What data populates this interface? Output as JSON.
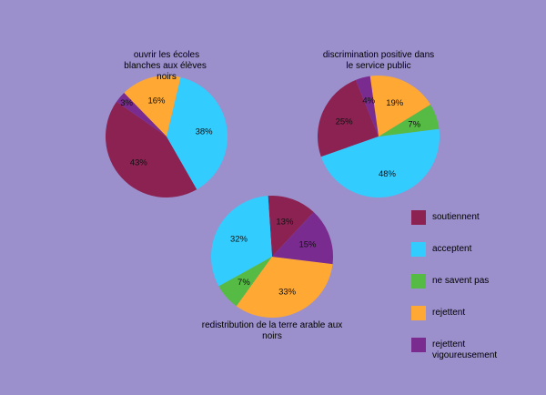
{
  "legend": {
    "entries": [
      {
        "label": "soutiennent",
        "color": "#8b2252"
      },
      {
        "label": "acceptent",
        "color": "#33ccff"
      },
      {
        "label": "ne savent pas",
        "color": "#55bb44"
      },
      {
        "label": "rejettent",
        "color": "#ffa833"
      },
      {
        "label": "rejettent vigoureusement",
        "color": "#7a2b8f"
      }
    ]
  },
  "chart_data": [
    {
      "type": "pie",
      "title": "ouvrir les écoles blanches aux élèves  noirs",
      "categories": [
        "soutiennent",
        "acceptent",
        "ne savent pas",
        "rejettent",
        "rejettent vigoureusement"
      ],
      "values": [
        43,
        38,
        0,
        16,
        3
      ],
      "labels": [
        "43%",
        "38%",
        "",
        "16%",
        "3%"
      ]
    },
    {
      "type": "pie",
      "title": "discrimination positive dans le service public",
      "categories": [
        "soutiennent",
        "acceptent",
        "ne savent pas",
        "rejettent",
        "rejettent vigoureusement"
      ],
      "values": [
        25,
        48,
        7,
        19,
        4
      ],
      "labels": [
        "25%",
        "48%",
        "7%",
        "19%",
        "4%"
      ]
    },
    {
      "type": "pie",
      "title": "redistribution de la terre arable aux noirs",
      "categories": [
        "soutiennent",
        "acceptent",
        "ne savent pas",
        "rejettent",
        "rejettent vigoureusement"
      ],
      "values": [
        13,
        32,
        7,
        33,
        15
      ],
      "labels": [
        "13%",
        "32%",
        "7%",
        "33%",
        "15%"
      ]
    }
  ]
}
